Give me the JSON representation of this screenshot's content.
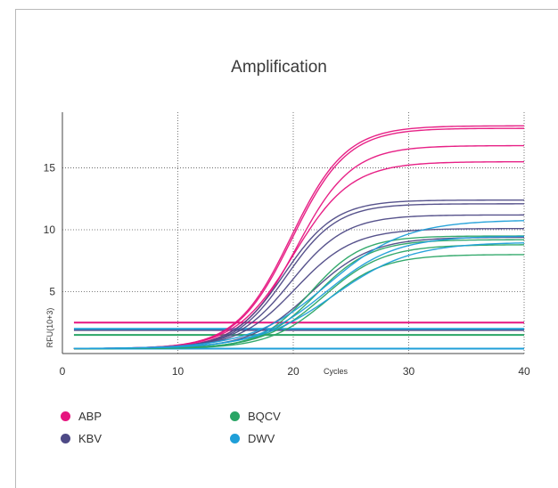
{
  "chart_data": {
    "type": "line",
    "title": "Amplification",
    "xlabel": "Cycles",
    "ylabel": "RFU(10+3)",
    "xlim": [
      0,
      40
    ],
    "ylim": [
      0,
      19.5
    ],
    "x_ticks": [
      0,
      10,
      20,
      30,
      40
    ],
    "y_ticks": [
      5,
      10,
      15
    ],
    "grid": "dotted",
    "legend_position": "bottom",
    "series": [
      {
        "name": "ABP",
        "color": "#e6157f",
        "curves": [
          {
            "base": 0.4,
            "plateau": 18.4,
            "mid": 19.8,
            "k": 0.42
          },
          {
            "base": 0.4,
            "plateau": 18.2,
            "mid": 19.9,
            "k": 0.42
          },
          {
            "base": 0.4,
            "plateau": 16.8,
            "mid": 20.3,
            "k": 0.42
          },
          {
            "base": 0.4,
            "plateau": 15.5,
            "mid": 20.0,
            "k": 0.4
          }
        ],
        "flat": [
          2.5
        ]
      },
      {
        "name": "KBV",
        "color": "#4e4a86",
        "curves": [
          {
            "base": 0.4,
            "plateau": 12.4,
            "mid": 19.2,
            "k": 0.45
          },
          {
            "base": 0.4,
            "plateau": 12.1,
            "mid": 19.4,
            "k": 0.45
          },
          {
            "base": 0.4,
            "plateau": 11.2,
            "mid": 19.8,
            "k": 0.42
          },
          {
            "base": 0.4,
            "plateau": 10.1,
            "mid": 20.2,
            "k": 0.4
          },
          {
            "base": 0.4,
            "plateau": 9.4,
            "mid": 21.5,
            "k": 0.38
          }
        ],
        "flat": [
          1.9
        ]
      },
      {
        "name": "BQCV",
        "color": "#2aa565",
        "curves": [
          {
            "base": 0.4,
            "plateau": 9.5,
            "mid": 21.5,
            "k": 0.45
          },
          {
            "base": 0.4,
            "plateau": 9.2,
            "mid": 22.0,
            "k": 0.42
          },
          {
            "base": 0.4,
            "plateau": 8.8,
            "mid": 22.6,
            "k": 0.38
          },
          {
            "base": 0.4,
            "plateau": 8.0,
            "mid": 22.8,
            "k": 0.4
          }
        ],
        "flat": [
          1.5
        ]
      },
      {
        "name": "DWV",
        "color": "#1f9fd8",
        "curves": [
          {
            "base": 0.4,
            "plateau": 10.8,
            "mid": 23.0,
            "k": 0.3
          },
          {
            "base": 0.4,
            "plateau": 9.5,
            "mid": 22.8,
            "k": 0.33
          },
          {
            "base": 0.4,
            "plateau": 9.0,
            "mid": 23.5,
            "k": 0.3
          }
        ],
        "flat": [
          2.0,
          0.4
        ]
      }
    ]
  }
}
